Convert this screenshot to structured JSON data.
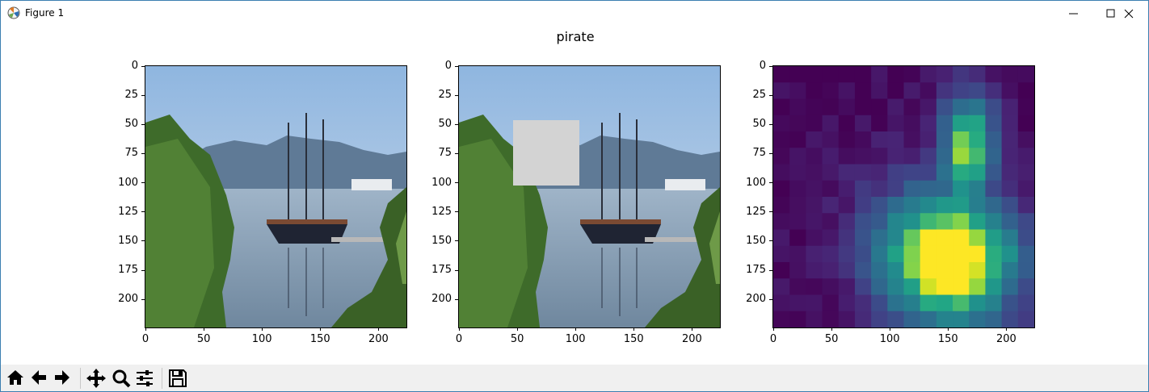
{
  "window": {
    "title": "Figure 1",
    "minimize_icon": "minimize-icon",
    "maximize_icon": "maximize-icon",
    "close_icon": "close-icon"
  },
  "figure": {
    "title": "pirate"
  },
  "panels": [
    {
      "name": "original-image",
      "xticks": [
        "0",
        "50",
        "100",
        "150",
        "200"
      ],
      "yticks": [
        "0",
        "25",
        "50",
        "75",
        "100",
        "125",
        "150",
        "175",
        "200"
      ]
    },
    {
      "name": "occluded-image",
      "xticks": [
        "0",
        "50",
        "100",
        "150",
        "200"
      ],
      "yticks": [
        "0",
        "25",
        "50",
        "75",
        "100",
        "125",
        "150",
        "175",
        "200"
      ]
    },
    {
      "name": "heatmap",
      "xticks": [
        "0",
        "50",
        "100",
        "150",
        "200"
      ],
      "yticks": [
        "0",
        "25",
        "50",
        "75",
        "100",
        "125",
        "150",
        "175",
        "200"
      ]
    }
  ],
  "colors": {
    "sky": "#a9c7e6",
    "mountain": "#5f7a96",
    "water": "#8ea5bd",
    "trees": "#3e6b2a",
    "occlusion": "#d3d3d3",
    "viridis_low": "#440154",
    "viridis_mid": "#21918c",
    "viridis_high": "#fde725"
  },
  "toolbar": {
    "buttons": [
      {
        "icon": "home-icon"
      },
      {
        "icon": "back-arrow-icon"
      },
      {
        "icon": "forward-arrow-icon"
      },
      {
        "icon": "pan-icon"
      },
      {
        "icon": "zoom-icon"
      },
      {
        "icon": "configure-subplots-icon"
      },
      {
        "icon": "save-icon"
      }
    ]
  }
}
